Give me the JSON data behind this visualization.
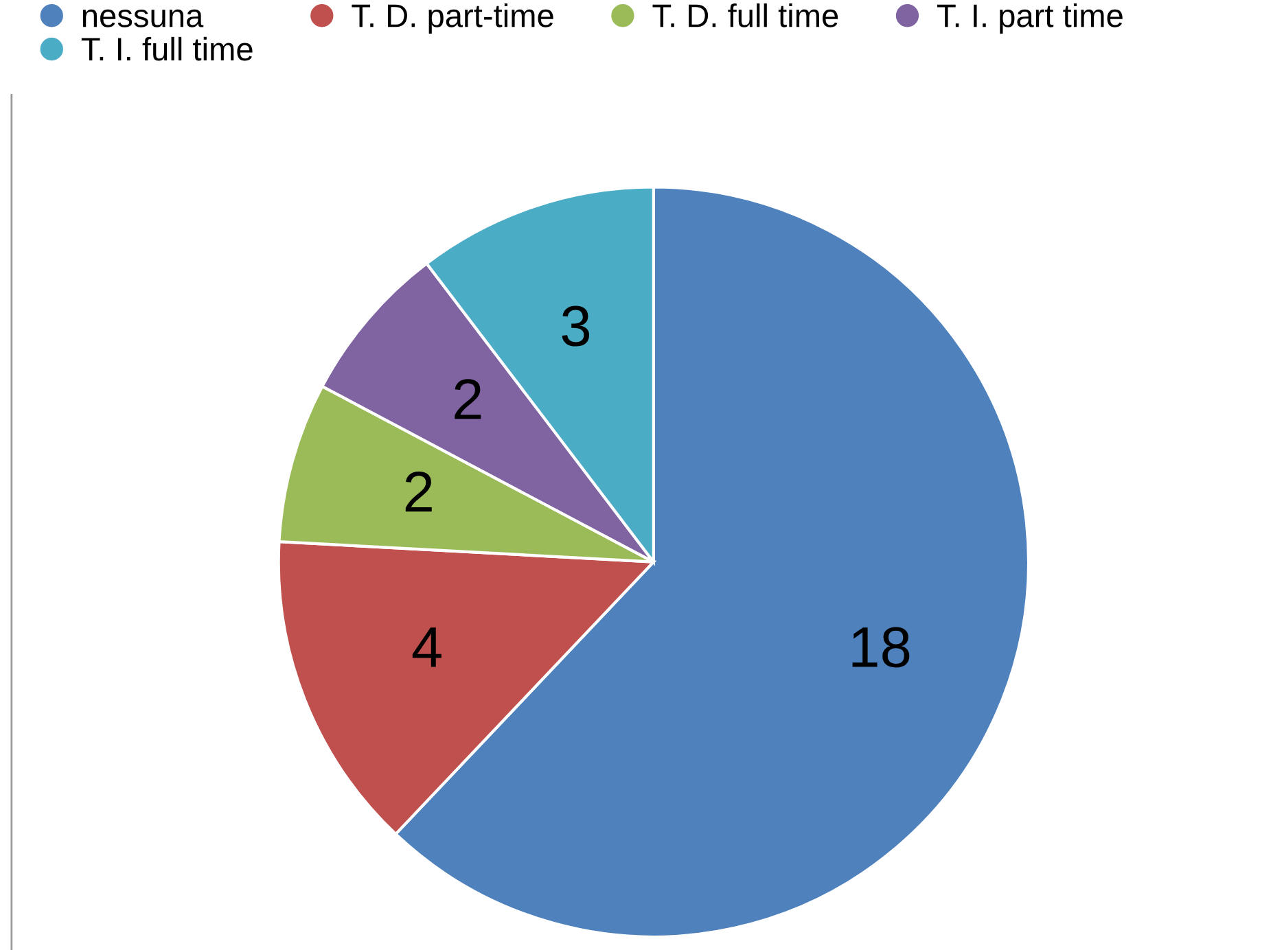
{
  "chart_data": {
    "type": "pie",
    "categories": [
      "nessuna",
      "T. D. part-time",
      "T. D. full time",
      "T. I. part time",
      "T. I. full time"
    ],
    "values": [
      18,
      4,
      2,
      2,
      3
    ],
    "colors": [
      "#4f81bd",
      "#c0504d",
      "#9bbb59",
      "#8064a2",
      "#4bacc6"
    ],
    "data_labels": true,
    "legend": "top"
  }
}
